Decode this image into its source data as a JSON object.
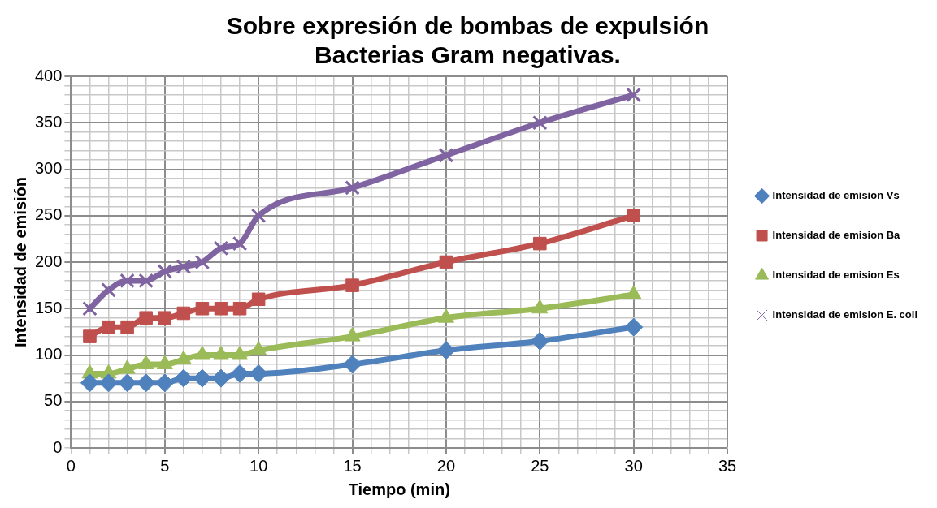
{
  "chart_data": {
    "type": "line",
    "title": [
      "Sobre expresión de bombas de expulsión",
      "Bacterias Gram negativas."
    ],
    "xlabel": "Tiempo (min)",
    "ylabel": "Intensidad de emisión",
    "x": [
      1,
      2,
      3,
      4,
      5,
      6,
      7,
      8,
      9,
      10,
      15,
      20,
      25,
      30
    ],
    "series": [
      {
        "name": "Intensidad de emision Vs",
        "color": "#4f81bd",
        "marker": "diamond",
        "values": [
          70,
          70,
          70,
          70,
          70,
          75,
          75,
          75,
          80,
          80,
          90,
          105,
          115,
          130
        ]
      },
      {
        "name": "Intensidad de emision Ba",
        "color": "#c0504d",
        "marker": "square",
        "values": [
          120,
          130,
          130,
          140,
          140,
          145,
          150,
          150,
          150,
          160,
          175,
          200,
          220,
          250
        ]
      },
      {
        "name": "Intensidad de emision Es",
        "color": "#9bbb59",
        "marker": "triangle",
        "values": [
          80,
          80,
          85,
          90,
          90,
          95,
          100,
          100,
          100,
          105,
          120,
          140,
          150,
          165
        ]
      },
      {
        "name": "Intensidad de emision E. coli",
        "color": "#8064a2",
        "marker": "cross",
        "values": [
          150,
          170,
          180,
          180,
          190,
          195,
          200,
          215,
          220,
          250,
          280,
          315,
          350,
          380
        ]
      }
    ],
    "xlim": [
      0,
      35
    ],
    "ylim": [
      0,
      400
    ],
    "xticks": [
      0,
      {
        "value": 1,
        "label": null
      },
      {
        "value": 2,
        "label": null
      },
      {
        "value": 3,
        "label": null
      },
      {
        "value": 4,
        "label": null
      },
      5,
      {
        "value": 6,
        "label": null
      },
      {
        "value": 7,
        "label": null
      },
      {
        "value": 8,
        "label": null
      },
      {
        "value": 9,
        "label": null
      },
      10,
      {
        "value": 11,
        "label": null
      },
      {
        "value": 12,
        "label": null
      },
      {
        "value": 13,
        "label": null
      },
      {
        "value": 14,
        "label": null
      },
      15,
      {
        "value": 16,
        "label": null
      },
      {
        "value": 17,
        "label": null
      },
      {
        "value": 18,
        "label": null
      },
      {
        "value": 19,
        "label": null
      },
      20,
      {
        "value": 21,
        "label": null
      },
      {
        "value": 22,
        "label": null
      },
      {
        "value": 23,
        "label": null
      },
      {
        "value": 24,
        "label": null
      },
      25,
      {
        "value": 26,
        "label": null
      },
      {
        "value": 27,
        "label": null
      },
      {
        "value": 28,
        "label": null
      },
      {
        "value": 29,
        "label": null
      },
      30,
      {
        "value": 31,
        "label": null
      },
      {
        "value": 32,
        "label": null
      },
      {
        "value": 33,
        "label": null
      },
      {
        "value": 34,
        "label": null
      },
      35
    ],
    "yticks": [
      0,
      {
        "value": 10,
        "label": null
      },
      {
        "value": 20,
        "label": null
      },
      {
        "value": 30,
        "label": null
      },
      {
        "value": 40,
        "label": null
      },
      50,
      {
        "value": 60,
        "label": null
      },
      {
        "value": 70,
        "label": null
      },
      {
        "value": 80,
        "label": null
      },
      {
        "value": 90,
        "label": null
      },
      100,
      {
        "value": 110,
        "label": null
      },
      {
        "value": 120,
        "label": null
      },
      {
        "value": 130,
        "label": null
      },
      {
        "value": 140,
        "label": null
      },
      150,
      {
        "value": 160,
        "label": null
      },
      {
        "value": 170,
        "label": null
      },
      {
        "value": 180,
        "label": null
      },
      {
        "value": 190,
        "label": null
      },
      200,
      {
        "value": 210,
        "label": null
      },
      {
        "value": 220,
        "label": null
      },
      {
        "value": 230,
        "label": null
      },
      {
        "value": 240,
        "label": null
      },
      250,
      {
        "value": 260,
        "label": null
      },
      {
        "value": 270,
        "label": null
      },
      {
        "value": 280,
        "label": null
      },
      {
        "value": 290,
        "label": null
      },
      300,
      {
        "value": 310,
        "label": null
      },
      {
        "value": 320,
        "label": null
      },
      {
        "value": 330,
        "label": null
      },
      {
        "value": 340,
        "label": null
      },
      350,
      {
        "value": 360,
        "label": null
      },
      {
        "value": 370,
        "label": null
      },
      {
        "value": 380,
        "label": null
      },
      {
        "value": 390,
        "label": null
      },
      400
    ],
    "grid": true,
    "legend": "right",
    "line_style": "solid"
  }
}
